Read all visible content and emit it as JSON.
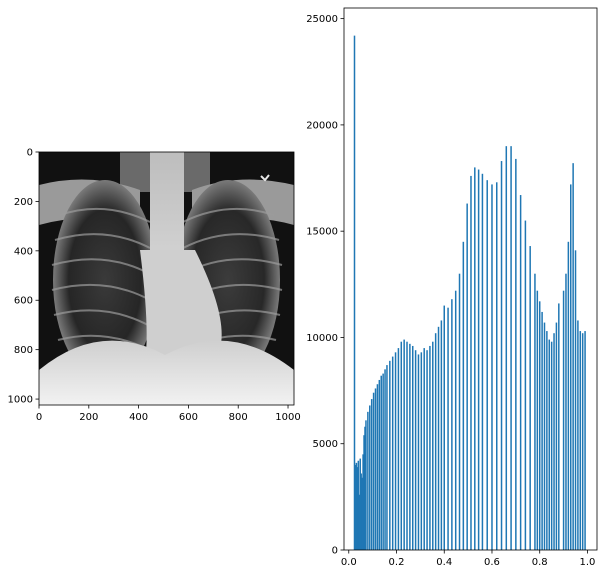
{
  "chart_data": [
    {
      "type": "image",
      "description_kind": "chest x-ray",
      "xlim": [
        0,
        1024
      ],
      "ylim": [
        1024,
        0
      ],
      "xticks": [
        0,
        200,
        400,
        600,
        800,
        1000
      ],
      "yticks": [
        0,
        200,
        400,
        600,
        800,
        1000
      ],
      "xtick_labels": [
        "0",
        "200",
        "400",
        "600",
        "800",
        "1000"
      ],
      "ytick_labels": [
        "0",
        "200",
        "400",
        "600",
        "800",
        "1000"
      ],
      "title": "",
      "xlabel": "",
      "ylabel": ""
    },
    {
      "type": "bar",
      "title": "",
      "xlabel": "",
      "ylabel": "",
      "xlim": [
        -0.02,
        1.04
      ],
      "ylim": [
        0,
        25500
      ],
      "xticks": [
        0.0,
        0.2,
        0.4,
        0.6,
        0.8,
        1.0
      ],
      "xtick_labels": [
        "0.0",
        "0.2",
        "0.4",
        "0.6",
        "0.8",
        "1.0"
      ],
      "yticks": [
        0,
        5000,
        10000,
        15000,
        20000,
        25000
      ],
      "ytick_labels": [
        "0",
        "5000",
        "10000",
        "15000",
        "20000",
        "25000"
      ],
      "color": "#1f77b4",
      "series": [
        {
          "x": [
            0.024,
            0.028,
            0.032,
            0.036,
            0.04,
            0.044,
            0.048,
            0.052,
            0.056,
            0.06,
            0.064,
            0.068,
            0.072,
            0.08,
            0.088,
            0.096,
            0.104,
            0.112,
            0.12,
            0.128,
            0.136,
            0.144,
            0.152,
            0.16,
            0.172,
            0.184,
            0.196,
            0.208,
            0.22,
            0.232,
            0.244,
            0.256,
            0.268,
            0.28,
            0.292,
            0.304,
            0.316,
            0.328,
            0.34,
            0.352,
            0.364,
            0.376,
            0.388,
            0.4,
            0.416,
            0.432,
            0.448,
            0.464,
            0.48,
            0.496,
            0.512,
            0.528,
            0.544,
            0.56,
            0.58,
            0.6,
            0.62,
            0.64,
            0.66,
            0.68,
            0.7,
            0.72,
            0.74,
            0.76,
            0.78,
            0.79,
            0.8,
            0.81,
            0.82,
            0.83,
            0.84,
            0.85,
            0.86,
            0.87,
            0.88,
            0.9,
            0.91,
            0.92,
            0.93,
            0.94,
            0.95,
            0.96,
            0.97,
            0.98,
            0.99
          ],
          "values": [
            24200,
            4000,
            4100,
            3900,
            4200,
            2600,
            4300,
            3600,
            3400,
            4500,
            5400,
            5800,
            6100,
            6500,
            6800,
            7100,
            7400,
            7600,
            7800,
            8000,
            8200,
            8300,
            8500,
            8700,
            8900,
            9100,
            9300,
            9500,
            9800,
            9900,
            9800,
            9700,
            9600,
            9400,
            9200,
            9300,
            9500,
            9400,
            9600,
            9800,
            10200,
            10500,
            10800,
            11500,
            11400,
            11800,
            12200,
            13000,
            14500,
            16300,
            17600,
            18000,
            17900,
            17700,
            17400,
            17200,
            17300,
            18300,
            19000,
            19000,
            18400,
            16700,
            15500,
            14300,
            13000,
            12200,
            11700,
            11200,
            10700,
            10300,
            9900,
            9800,
            10200,
            10700,
            11600,
            12200,
            13000,
            14500,
            17200,
            18200,
            14100,
            10800,
            10300,
            10200,
            10300
          ]
        }
      ]
    }
  ]
}
